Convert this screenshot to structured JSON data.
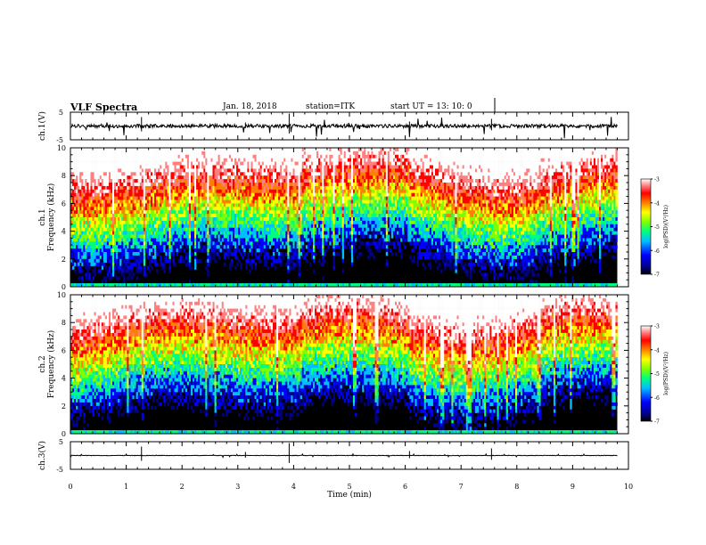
{
  "header": {
    "title": "VLF Spectra",
    "date": "Jan. 18, 2018",
    "station": "station=ITK",
    "start": "start  UT =   13: 10: 0"
  },
  "colors": {
    "waveform": "#000000",
    "colormap": [
      "#000000",
      "#00008b",
      "#0000ff",
      "#00bfff",
      "#00ff80",
      "#80ff00",
      "#ffff00",
      "#ff8000",
      "#ff0000",
      "#ff8080",
      "#ffffff"
    ]
  },
  "chart_data": [
    {
      "type": "line",
      "panel": "ch1-waveform",
      "ylabel": "ch.1(V)",
      "ylim": [
        -5,
        5
      ],
      "yticks": [
        "5",
        "-5"
      ],
      "x_unit": "min",
      "xlim": [
        0,
        9.8
      ],
      "baseline": 0,
      "amplitude_note_value": 0.3
    },
    {
      "type": "heatmap",
      "panel": "ch1-spectrogram",
      "ylabel": "ch.1\nFrequency (kHz)",
      "ylabel_lines": [
        "ch.1",
        "Frequency (kHz)"
      ],
      "ylim": [
        0,
        10
      ],
      "yticks": [
        "0",
        "2",
        "4",
        "6",
        "8",
        "10"
      ],
      "xlim": [
        0,
        9.8
      ],
      "colorbar": {
        "label": "log(PSD)(V²/Hz)",
        "range": [
          -7,
          -3
        ],
        "ticks": [
          "-3",
          "-4",
          "-5",
          "-6",
          "-7"
        ]
      }
    },
    {
      "type": "heatmap",
      "panel": "ch2-spectrogram",
      "ylabel_lines": [
        "ch.2",
        "Frequency (kHz)"
      ],
      "ylim": [
        0,
        10
      ],
      "yticks": [
        "0",
        "2",
        "4",
        "6",
        "8",
        "10"
      ],
      "xlim": [
        0,
        9.8
      ],
      "colorbar": {
        "label": "log(PSD)(V²/Hz)",
        "range": [
          -7,
          -3
        ],
        "ticks": [
          "-3",
          "-4",
          "-5",
          "-6",
          "-7"
        ]
      }
    },
    {
      "type": "line",
      "panel": "ch3-waveform",
      "ylabel": "ch.3(V)",
      "ylim": [
        -5,
        5
      ],
      "yticks": [
        "5",
        "-5"
      ],
      "xlim": [
        0,
        9.8
      ],
      "baseline": 0
    }
  ],
  "xaxis": {
    "label": "Time (min)",
    "range": [
      0,
      10
    ],
    "ticks": [
      "0",
      "1",
      "2",
      "3",
      "4",
      "5",
      "6",
      "7",
      "8",
      "9",
      "10"
    ]
  }
}
